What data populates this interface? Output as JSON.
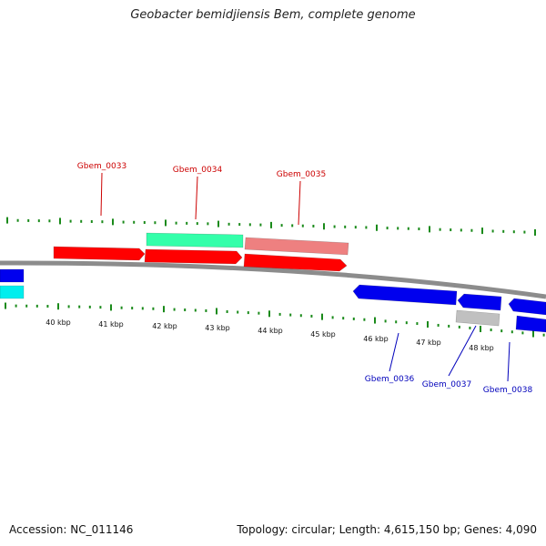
{
  "title": "Geobacter bemidjiensis Bem, complete genome",
  "accession_text": "Accession: NC_011146",
  "summary_text": "Topology: circular; Length: 4,615,150 bp; Genes: 4,090",
  "colors": {
    "backbone": "#8c8c8c",
    "tick": "#1a8a1a",
    "forward_gene": "#ff0000",
    "forward_label": "#cc0000",
    "forward_rna": "#33ffaa",
    "forward_pseudo": "#ee8080",
    "reverse_gene": "#0000ee",
    "reverse_label": "#0000bb",
    "reverse_rna": "#00eeee",
    "reverse_other": "#c0c0c0"
  },
  "scale_labels": [
    "40 kbp",
    "41 kbp",
    "42 kbp",
    "43 kbp",
    "44 kbp",
    "45 kbp",
    "46 kbp",
    "47 kbp",
    "48 kbp"
  ],
  "gene_labels": {
    "forward": [
      "Gbem_0033",
      "Gbem_0034",
      "Gbem_0035"
    ],
    "reverse": [
      "Gbem_0036",
      "Gbem_0037",
      "Gbem_0038"
    ]
  }
}
